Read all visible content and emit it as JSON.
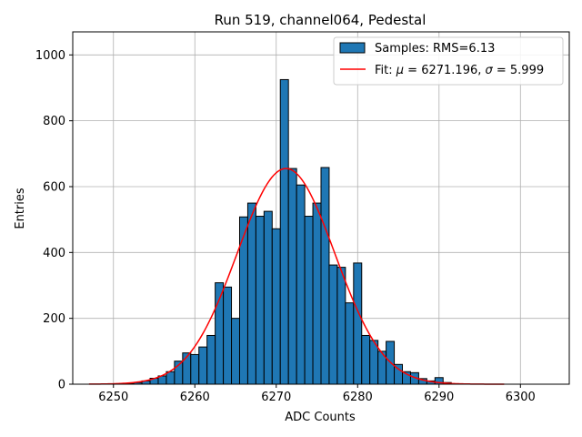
{
  "chart_data": {
    "type": "bar",
    "title": "Run 519, channel064, Pedestal",
    "xlabel": "ADC Counts",
    "ylabel": "Entries",
    "xlim": [
      6245,
      6306
    ],
    "ylim": [
      0,
      1070
    ],
    "xticks": [
      6250,
      6260,
      6270,
      6280,
      6290,
      6300
    ],
    "yticks": [
      0,
      200,
      400,
      600,
      800,
      1000
    ],
    "grid": true,
    "legend_position": "top-right",
    "colors": {
      "bar_fill": "#1f77b4",
      "bar_edge": "#000000",
      "fit_line": "#ff0000"
    },
    "histogram": {
      "name": "Samples: RMS=6.13",
      "bin_width": 1,
      "bins": [
        {
          "x": 6252,
          "count": 2
        },
        {
          "x": 6253,
          "count": 5
        },
        {
          "x": 6254,
          "count": 10
        },
        {
          "x": 6255,
          "count": 18
        },
        {
          "x": 6256,
          "count": 25
        },
        {
          "x": 6257,
          "count": 38
        },
        {
          "x": 6258,
          "count": 70
        },
        {
          "x": 6259,
          "count": 95
        },
        {
          "x": 6260,
          "count": 90
        },
        {
          "x": 6261,
          "count": 113
        },
        {
          "x": 6262,
          "count": 148
        },
        {
          "x": 6263,
          "count": 308
        },
        {
          "x": 6264,
          "count": 295
        },
        {
          "x": 6265,
          "count": 200
        },
        {
          "x": 6266,
          "count": 508
        },
        {
          "x": 6267,
          "count": 550
        },
        {
          "x": 6268,
          "count": 510
        },
        {
          "x": 6269,
          "count": 525
        },
        {
          "x": 6270,
          "count": 472
        },
        {
          "x": 6271,
          "count": 925
        },
        {
          "x": 6272,
          "count": 655
        },
        {
          "x": 6273,
          "count": 605
        },
        {
          "x": 6274,
          "count": 510
        },
        {
          "x": 6275,
          "count": 550
        },
        {
          "x": 6276,
          "count": 658
        },
        {
          "x": 6277,
          "count": 362
        },
        {
          "x": 6278,
          "count": 355
        },
        {
          "x": 6279,
          "count": 247
        },
        {
          "x": 6280,
          "count": 368
        },
        {
          "x": 6281,
          "count": 148
        },
        {
          "x": 6282,
          "count": 133
        },
        {
          "x": 6283,
          "count": 100
        },
        {
          "x": 6284,
          "count": 130
        },
        {
          "x": 6285,
          "count": 60
        },
        {
          "x": 6286,
          "count": 38
        },
        {
          "x": 6287,
          "count": 35
        },
        {
          "x": 6288,
          "count": 17
        },
        {
          "x": 6289,
          "count": 10
        },
        {
          "x": 6290,
          "count": 20
        },
        {
          "x": 6291,
          "count": 5
        }
      ]
    },
    "fit": {
      "name_prefix": "Fit: ",
      "mu_symbol": "μ",
      "mu_text": " = 6271.196, ",
      "sigma_symbol": "σ",
      "sigma_text": " = 5.999",
      "type": "gaussian",
      "mu": 6271.196,
      "sigma": 5.999,
      "amplitude": 655,
      "x_range": [
        6247,
        6298
      ]
    }
  }
}
